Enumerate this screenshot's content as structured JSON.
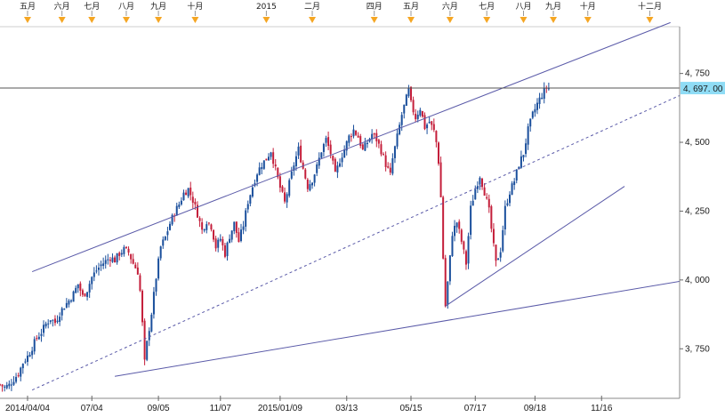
{
  "chart_data": {
    "type": "candlestick",
    "title": "",
    "xlabel": "",
    "ylabel": "",
    "ylim": [
      3570,
      4920
    ],
    "price_label": "4, 697. 00",
    "price_value": 4697,
    "y_ticks": [
      {
        "value": 4750,
        "label": "4, 750"
      },
      {
        "value": 4500,
        "label": "4, 500"
      },
      {
        "value": 4250,
        "label": "4, 250"
      },
      {
        "value": 4000,
        "label": "4, 000"
      },
      {
        "value": 3750,
        "label": "3, 750"
      }
    ],
    "x_ticks": [
      "2014/04/04",
      "07/04",
      "09/05",
      "11/07",
      "2015/01/09",
      "03/13",
      "05/15",
      "07/17",
      "09/18",
      "11/16"
    ],
    "top_labels": [
      "五月",
      "六月",
      "七月",
      "八月",
      "九月",
      "十月",
      "2015",
      "二月",
      "四月",
      "五月",
      "六月",
      "七月",
      "八月",
      "九月",
      "十月",
      "十二月"
    ],
    "series": [
      {
        "values": [
          [
            0,
            3620
          ],
          [
            2,
            3610
          ],
          [
            4,
            3618
          ],
          [
            6,
            3640
          ],
          [
            8,
            3660
          ],
          [
            10,
            3700
          ],
          [
            12,
            3722
          ],
          [
            14,
            3755
          ],
          [
            16,
            3790
          ],
          [
            18,
            3810
          ],
          [
            20,
            3840
          ],
          [
            22,
            3860
          ],
          [
            24,
            3845
          ],
          [
            26,
            3880
          ],
          [
            28,
            3905
          ],
          [
            30,
            3925
          ],
          [
            32,
            3950
          ],
          [
            34,
            3985
          ],
          [
            36,
            3940
          ],
          [
            38,
            3965
          ],
          [
            40,
            4010
          ],
          [
            42,
            4035
          ],
          [
            44,
            4055
          ],
          [
            46,
            4068
          ],
          [
            48,
            4082
          ],
          [
            50,
            4072
          ],
          [
            52,
            4096
          ],
          [
            54,
            4110
          ],
          [
            56,
            4100
          ],
          [
            58,
            4060
          ],
          [
            60,
            4030
          ],
          [
            61,
            3960
          ],
          [
            62,
            3840
          ],
          [
            63,
            3700
          ],
          [
            64,
            3770
          ],
          [
            66,
            3880
          ],
          [
            68,
            4010
          ],
          [
            70,
            4120
          ],
          [
            72,
            4155
          ],
          [
            74,
            4205
          ],
          [
            76,
            4245
          ],
          [
            78,
            4275
          ],
          [
            80,
            4315
          ],
          [
            82,
            4330
          ],
          [
            84,
            4290
          ],
          [
            86,
            4240
          ],
          [
            88,
            4180
          ],
          [
            90,
            4215
          ],
          [
            92,
            4195
          ],
          [
            94,
            4120
          ],
          [
            96,
            4150
          ],
          [
            98,
            4095
          ],
          [
            100,
            4160
          ],
          [
            102,
            4205
          ],
          [
            104,
            4140
          ],
          [
            106,
            4200
          ],
          [
            108,
            4285
          ],
          [
            110,
            4340
          ],
          [
            112,
            4390
          ],
          [
            114,
            4420
          ],
          [
            116,
            4440
          ],
          [
            118,
            4470
          ],
          [
            120,
            4400
          ],
          [
            122,
            4335
          ],
          [
            124,
            4280
          ],
          [
            126,
            4350
          ],
          [
            128,
            4420
          ],
          [
            130,
            4475
          ],
          [
            132,
            4405
          ],
          [
            134,
            4340
          ],
          [
            136,
            4365
          ],
          [
            138,
            4410
          ],
          [
            140,
            4470
          ],
          [
            142,
            4510
          ],
          [
            144,
            4460
          ],
          [
            146,
            4380
          ],
          [
            148,
            4435
          ],
          [
            150,
            4475
          ],
          [
            152,
            4520
          ],
          [
            154,
            4545
          ],
          [
            156,
            4520
          ],
          [
            158,
            4470
          ],
          [
            160,
            4500
          ],
          [
            162,
            4530
          ],
          [
            164,
            4510
          ],
          [
            166,
            4470
          ],
          [
            168,
            4420
          ],
          [
            170,
            4380
          ],
          [
            171,
            4440
          ],
          [
            173,
            4520
          ],
          [
            175,
            4600
          ],
          [
            177,
            4660
          ],
          [
            178,
            4690
          ],
          [
            179,
            4640
          ],
          [
            181,
            4590
          ],
          [
            183,
            4625
          ],
          [
            185,
            4555
          ],
          [
            187,
            4575
          ],
          [
            189,
            4540
          ],
          [
            190,
            4500
          ],
          [
            191,
            4430
          ],
          [
            192,
            4300
          ],
          [
            193,
            4080
          ],
          [
            194,
            3905
          ],
          [
            195,
            3990
          ],
          [
            197,
            4170
          ],
          [
            199,
            4210
          ],
          [
            201,
            4140
          ],
          [
            203,
            4060
          ],
          [
            205,
            4260
          ],
          [
            207,
            4330
          ],
          [
            209,
            4380
          ],
          [
            211,
            4320
          ],
          [
            213,
            4250
          ],
          [
            215,
            4120
          ],
          [
            216,
            4060
          ],
          [
            218,
            4110
          ],
          [
            220,
            4260
          ],
          [
            222,
            4320
          ],
          [
            224,
            4360
          ],
          [
            226,
            4420
          ],
          [
            228,
            4460
          ],
          [
            230,
            4545
          ],
          [
            232,
            4600
          ],
          [
            234,
            4640
          ],
          [
            236,
            4672
          ],
          [
            238,
            4700
          ],
          [
            239,
            4697
          ]
        ]
      }
    ],
    "channel": {
      "upper": [
        [
          -12,
          4030
        ],
        [
          296,
          4940
        ]
      ],
      "lower": [
        [
          -12,
          3650
        ],
        [
          296,
          3995
        ]
      ],
      "middle": [
        [
          -12,
          3595
        ],
        [
          296,
          4675
        ]
      ]
    },
    "support": [
      [
        194,
        3905
      ],
      [
        272,
        4340
      ]
    ],
    "horizontal_line": 4697,
    "grid": false,
    "colors": {
      "up": "#1a4f9c",
      "down": "#c41e3a",
      "channel": "#5a5aa8",
      "horizontal": "#555555",
      "price_box": "#8fdcf5",
      "marker": "#f5a623"
    }
  }
}
